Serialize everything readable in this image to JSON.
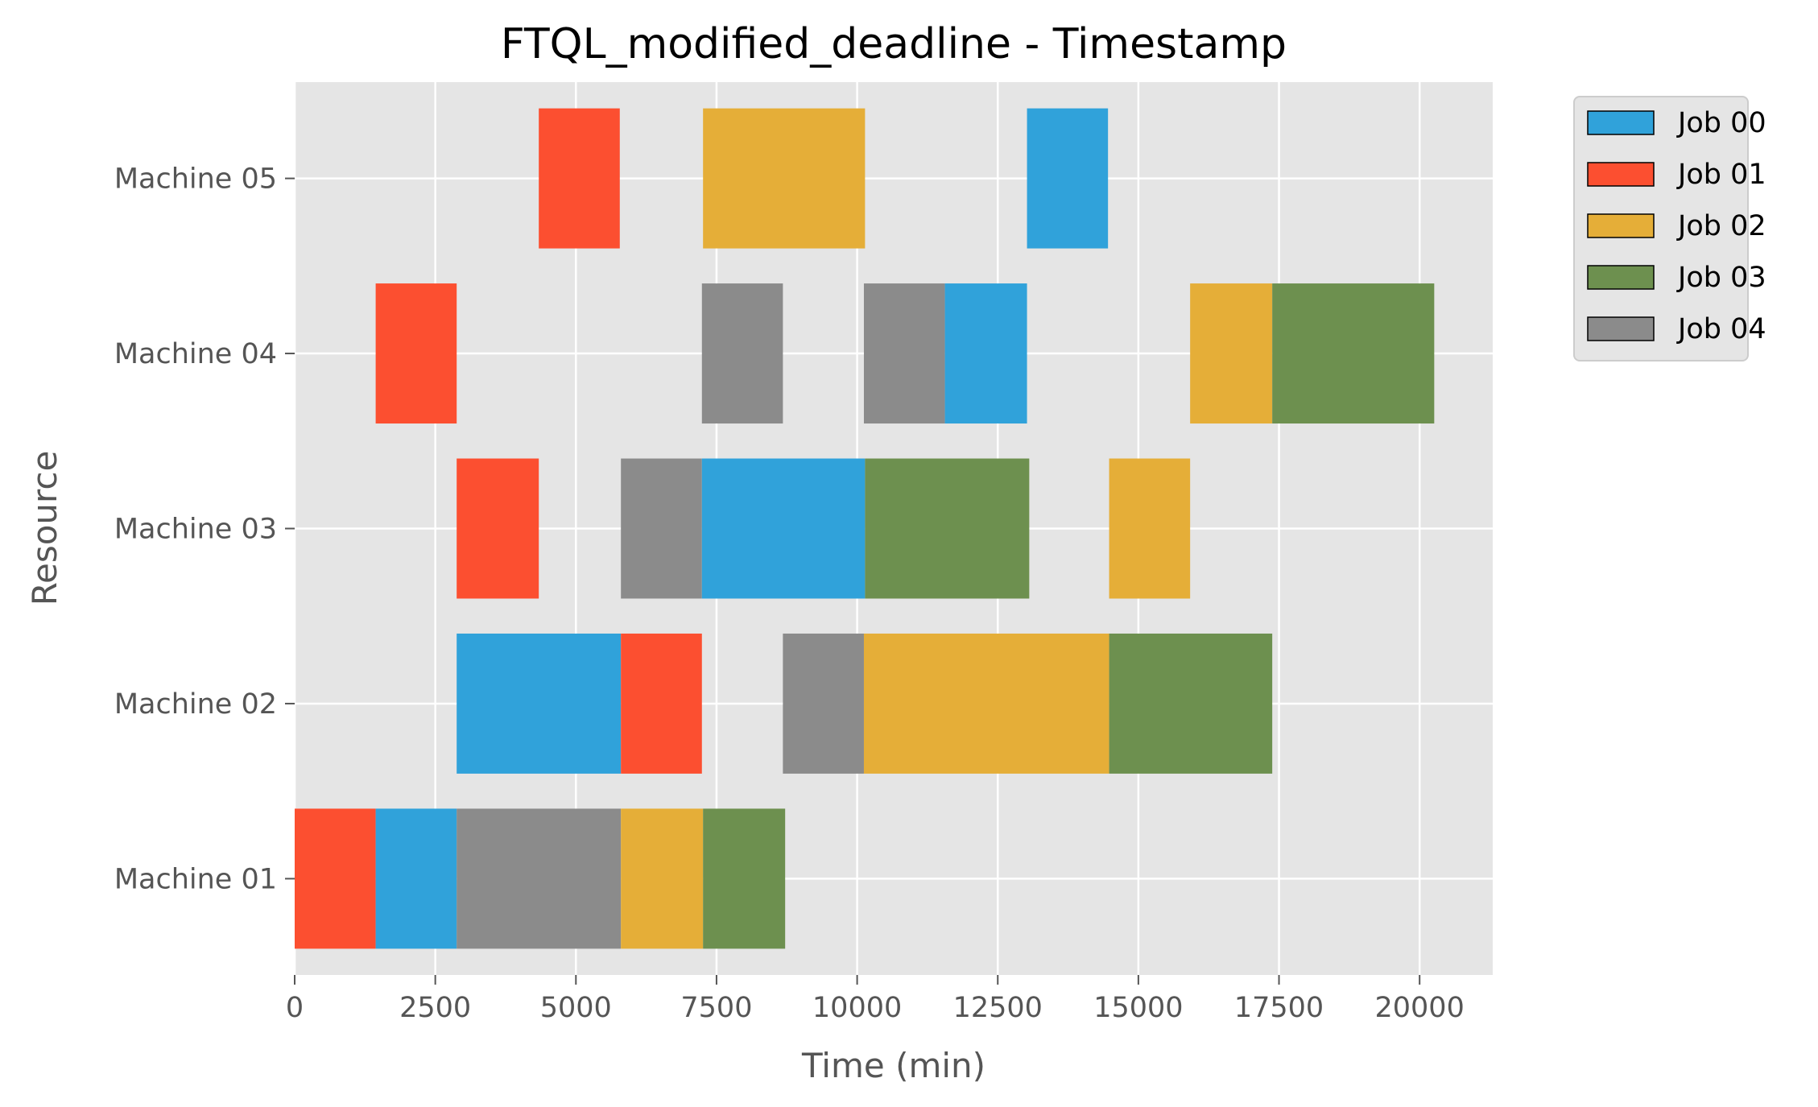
{
  "chart_data": {
    "type": "gantt",
    "title": "FTQL_modified_deadline - Timestamp",
    "xlabel": "Time (min)",
    "ylabel": "Resource",
    "xlim": [
      0,
      21300
    ],
    "x_ticks": [
      0,
      2500,
      5000,
      7500,
      10000,
      12500,
      15000,
      17500,
      20000
    ],
    "grid": true,
    "legend_position": "outside-top-right",
    "resources": [
      "Machine 01",
      "Machine 02",
      "Machine 03",
      "Machine 04",
      "Machine 05"
    ],
    "jobs": [
      {
        "name": "Job 00",
        "color": "#30a2da"
      },
      {
        "name": "Job 01",
        "color": "#fc4f30"
      },
      {
        "name": "Job 02",
        "color": "#e5ae38"
      },
      {
        "name": "Job 03",
        "color": "#6d904f"
      },
      {
        "name": "Job 04",
        "color": "#8b8b8b"
      }
    ],
    "tasks": [
      {
        "resource": "Machine 01",
        "job": "Job 01",
        "start": 0,
        "end": 1440
      },
      {
        "resource": "Machine 01",
        "job": "Job 00",
        "start": 1440,
        "end": 2880
      },
      {
        "resource": "Machine 01",
        "job": "Job 04",
        "start": 2880,
        "end": 5800
      },
      {
        "resource": "Machine 01",
        "job": "Job 02",
        "start": 5800,
        "end": 7260
      },
      {
        "resource": "Machine 01",
        "job": "Job 03",
        "start": 7260,
        "end": 8720
      },
      {
        "resource": "Machine 02",
        "job": "Job 00",
        "start": 2880,
        "end": 5800
      },
      {
        "resource": "Machine 02",
        "job": "Job 01",
        "start": 5800,
        "end": 7240
      },
      {
        "resource": "Machine 02",
        "job": "Job 04",
        "start": 8680,
        "end": 10120
      },
      {
        "resource": "Machine 02",
        "job": "Job 02",
        "start": 10120,
        "end": 14480
      },
      {
        "resource": "Machine 02",
        "job": "Job 03",
        "start": 14480,
        "end": 17380
      },
      {
        "resource": "Machine 03",
        "job": "Job 01",
        "start": 2880,
        "end": 4340
      },
      {
        "resource": "Machine 03",
        "job": "Job 04",
        "start": 5800,
        "end": 7240
      },
      {
        "resource": "Machine 03",
        "job": "Job 00",
        "start": 7240,
        "end": 10140
      },
      {
        "resource": "Machine 03",
        "job": "Job 03",
        "start": 10140,
        "end": 13060
      },
      {
        "resource": "Machine 03",
        "job": "Job 02",
        "start": 14480,
        "end": 15920
      },
      {
        "resource": "Machine 04",
        "job": "Job 01",
        "start": 1440,
        "end": 2880
      },
      {
        "resource": "Machine 04",
        "job": "Job 04",
        "start": 7240,
        "end": 8680
      },
      {
        "resource": "Machine 04",
        "job": "Job 04",
        "start": 10120,
        "end": 11560
      },
      {
        "resource": "Machine 04",
        "job": "Job 00",
        "start": 11560,
        "end": 13020
      },
      {
        "resource": "Machine 04",
        "job": "Job 02",
        "start": 15920,
        "end": 17380
      },
      {
        "resource": "Machine 04",
        "job": "Job 03",
        "start": 17380,
        "end": 20260
      },
      {
        "resource": "Machine 05",
        "job": "Job 01",
        "start": 4340,
        "end": 5780
      },
      {
        "resource": "Machine 05",
        "job": "Job 02",
        "start": 7260,
        "end": 10140
      },
      {
        "resource": "Machine 05",
        "job": "Job 00",
        "start": 13020,
        "end": 14460
      }
    ]
  }
}
